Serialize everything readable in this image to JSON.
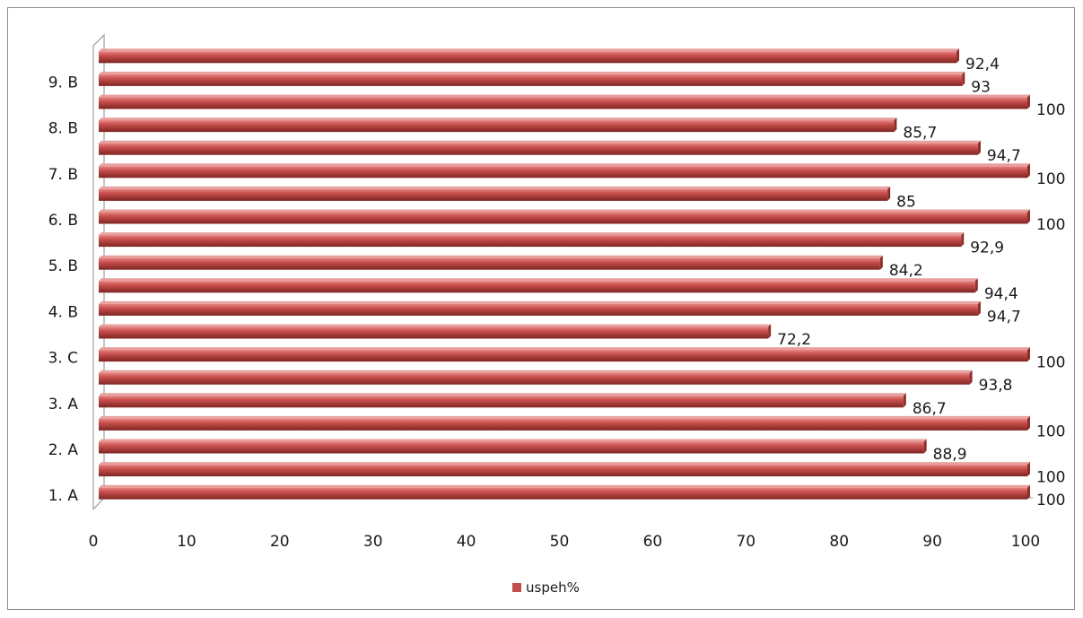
{
  "chart_data": {
    "type": "bar",
    "orientation": "horizontal",
    "three_d": true,
    "categories": [
      "1. A",
      "",
      "2. A",
      "",
      "3. A",
      "",
      "3. C",
      "",
      "4. B",
      "",
      "5. B",
      "",
      "6. B",
      "",
      "7. B",
      "",
      "8. B",
      "",
      "9. B",
      ""
    ],
    "series": [
      {
        "name": "uspeh%",
        "color": "#c0504d",
        "values": [
          100,
          100,
          88.9,
          100,
          86.7,
          93.8,
          100,
          72.2,
          94.7,
          94.4,
          84.2,
          92.9,
          100,
          85,
          100,
          94.7,
          85.7,
          100,
          93,
          92.4
        ],
        "labels": [
          "100",
          "100",
          "88,9",
          "100",
          "86,7",
          "93,8",
          "100",
          "72,2",
          "94,7",
          "94,4",
          "84,2",
          "92,9",
          "100",
          "85",
          "100",
          "94,7",
          "85,7",
          "100",
          "93",
          "92,4"
        ]
      }
    ],
    "xlim": [
      0,
      100
    ],
    "x_ticks": [
      "0",
      "10",
      "20",
      "30",
      "40",
      "50",
      "60",
      "70",
      "80",
      "90",
      "100"
    ],
    "grid": false,
    "legend": "bottom",
    "title": "",
    "xlabel": "",
    "ylabel": ""
  }
}
